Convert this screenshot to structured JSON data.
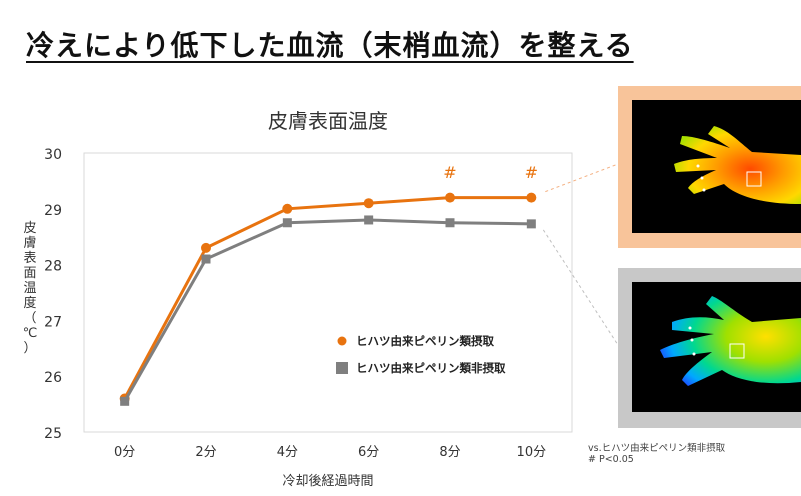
{
  "heading": "冷えにより低下した血流（末梢血流）を整える",
  "chart_data": {
    "type": "line",
    "title": "皮膚表面温度",
    "xlabel": "冷却後経過時間",
    "ylabel": "皮膚表面温度（℃）",
    "categories": [
      "0分",
      "2分",
      "4分",
      "6分",
      "8分",
      "10分"
    ],
    "ylim": [
      25,
      30
    ],
    "yticks": [
      25,
      26,
      27,
      28,
      29,
      30
    ],
    "grid": false,
    "legend_position": "lower-right",
    "series": [
      {
        "name": "ヒハツ由来ピペリン類摂取",
        "values": [
          25.6,
          28.3,
          29.0,
          29.1,
          29.2,
          29.2
        ],
        "color": "#e8730f",
        "marker": "circle",
        "annotations": [
          "",
          "",
          "",
          "",
          "#",
          "#"
        ]
      },
      {
        "name": "ヒハツ由来ピペリン類非摂取",
        "values": [
          25.55,
          28.1,
          28.75,
          28.8,
          28.75,
          28.73
        ],
        "color": "#7f7f7f",
        "marker": "square",
        "annotations": [
          "",
          "",
          "",
          "",
          "",
          ""
        ]
      }
    ]
  },
  "notes": {
    "line1": "vs.ヒハツ由来ピペリン類非摂取",
    "line2": "# P<0.05"
  },
  "colors": {
    "orange_frame": "#f8c49a",
    "gray_frame": "#c8c8c8"
  }
}
